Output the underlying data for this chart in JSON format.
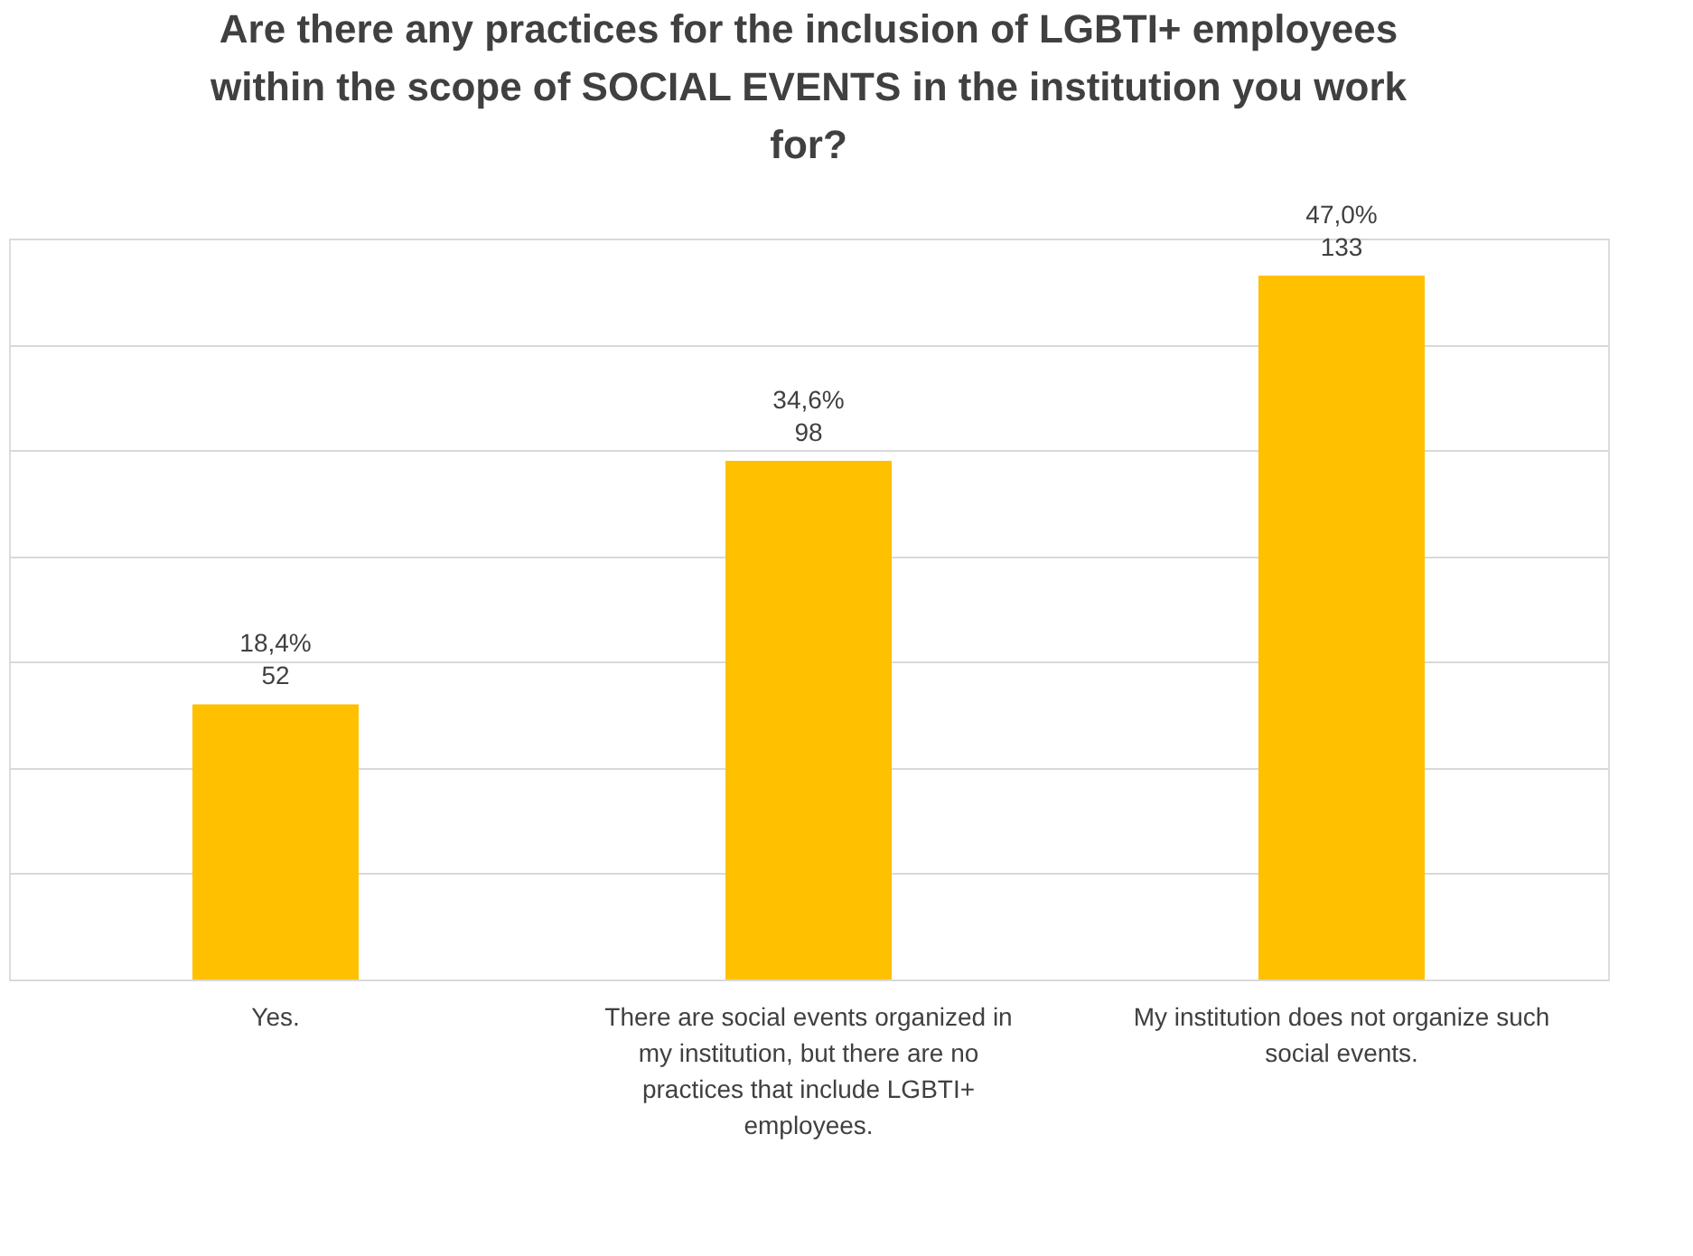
{
  "chart_data": {
    "type": "bar",
    "title": "Are there any practices for the inclusion of LGBTI+ employees within the scope of SOCIAL EVENTS in the institution you work for?",
    "categories": [
      "Yes.",
      "There are social events organized in my institution, but there are no practices that include LGBTI+ employees.",
      "My institution does not organize such social events."
    ],
    "values": [
      52,
      98,
      133
    ],
    "value_labels": [
      "18,4%\n52",
      "34,6%\n98",
      "47,0%\n133"
    ],
    "color": "#ffc000",
    "ylim": [
      0,
      140
    ],
    "yticks": [
      {
        "value": 0,
        "label": null
      },
      {
        "value": 20,
        "label": null
      },
      {
        "value": 40,
        "label": null
      },
      {
        "value": 60,
        "label": null
      },
      {
        "value": 80,
        "label": null
      },
      {
        "value": 100,
        "label": null
      },
      {
        "value": 120,
        "label": null
      },
      {
        "value": 140,
        "label": null
      }
    ],
    "grid": "y",
    "tick_labels": "x"
  }
}
